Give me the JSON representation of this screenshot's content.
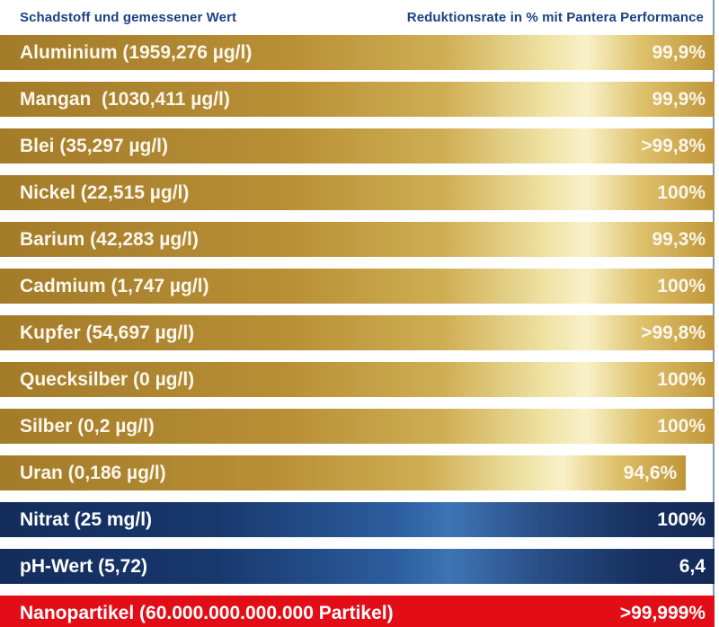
{
  "header": {
    "left": "Schadstoff und gemessener Wert",
    "right": "Reduktionsrate in % mit Pantera Performance"
  },
  "colors": {
    "header_text": "#1c4284",
    "gold_base": "#ad8530",
    "gold_highlight": "#f9f1c8",
    "blue_base": "#132c5c",
    "blue_highlight": "#3e74b4",
    "red": "#e30d18",
    "bar_text": "#fbf7ec",
    "edge_line": "#8596bb",
    "background": "#ffffff"
  },
  "chart_data": {
    "type": "bar",
    "orientation": "horizontal",
    "title": "",
    "columns": [
      "Schadstoff und gemessener Wert",
      "Reduktionsrate in % mit Pantera Performance"
    ],
    "legend": "none",
    "grid": false,
    "rows": [
      {
        "label": "Aluminium (1959,276 µg/l)",
        "pollutant": "Aluminium",
        "measured": "1959,276 µg/l",
        "value": "99,9%",
        "value_numeric": 99.9,
        "color_group": "gold",
        "bar_width_pct": 100
      },
      {
        "label": "Mangan  (1030,411 µg/l)",
        "pollutant": "Mangan",
        "measured": "1030,411 µg/l",
        "value": "99,9%",
        "value_numeric": 99.9,
        "color_group": "gold",
        "bar_width_pct": 100
      },
      {
        "label": "Blei (35,297 µg/l)",
        "pollutant": "Blei",
        "measured": "35,297 µg/l",
        "value": ">99,8%",
        "value_numeric": 99.8,
        "color_group": "gold",
        "bar_width_pct": 100
      },
      {
        "label": "Nickel (22,515 µg/l)",
        "pollutant": "Nickel",
        "measured": "22,515 µg/l",
        "value": "100%",
        "value_numeric": 100,
        "color_group": "gold",
        "bar_width_pct": 100
      },
      {
        "label": "Barium (42,283 µg/l)",
        "pollutant": "Barium",
        "measured": "42,283 µg/l",
        "value": "99,3%",
        "value_numeric": 99.3,
        "color_group": "gold",
        "bar_width_pct": 100
      },
      {
        "label": "Cadmium (1,747 µg/l)",
        "pollutant": "Cadmium",
        "measured": "1,747 µg/l",
        "value": "100%",
        "value_numeric": 100,
        "color_group": "gold",
        "bar_width_pct": 100
      },
      {
        "label": "Kupfer (54,697 µg/l)",
        "pollutant": "Kupfer",
        "measured": "54,697 µg/l",
        "value": ">99,8%",
        "value_numeric": 99.8,
        "color_group": "gold",
        "bar_width_pct": 100
      },
      {
        "label": "Quecksilber (0 µg/l)",
        "pollutant": "Quecksilber",
        "measured": "0 µg/l",
        "value": "100%",
        "value_numeric": 100,
        "color_group": "gold",
        "bar_width_pct": 100
      },
      {
        "label": "Silber (0,2 µg/l)",
        "pollutant": "Silber",
        "measured": "0,2 µg/l",
        "value": "100%",
        "value_numeric": 100,
        "color_group": "gold",
        "bar_width_pct": 100
      },
      {
        "label": "Uran (0,186 µg/l)",
        "pollutant": "Uran",
        "measured": "0,186 µg/l",
        "value": "94,6%",
        "value_numeric": 94.6,
        "color_group": "gold",
        "bar_width_pct": 96
      },
      {
        "label": "Nitrat (25 mg/l)",
        "pollutant": "Nitrat",
        "measured": "25 mg/l",
        "value": "100%",
        "value_numeric": 100,
        "color_group": "blue",
        "bar_width_pct": 100
      },
      {
        "label": "pH-Wert (5,72)",
        "pollutant": "pH-Wert",
        "measured": "5,72",
        "value": "6,4",
        "value_numeric": 6.4,
        "color_group": "blue",
        "bar_width_pct": 100
      },
      {
        "label": "Nanopartikel (60.000.000.000.000 Partikel)",
        "pollutant": "Nanopartikel",
        "measured": "60.000.000.000.000 Partikel",
        "value": ">99,999%",
        "value_numeric": 99.999,
        "color_group": "red",
        "bar_width_pct": 100
      }
    ]
  }
}
